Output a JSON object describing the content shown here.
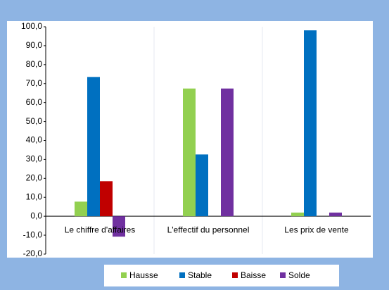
{
  "chart_data": {
    "type": "bar",
    "categories": [
      "Le chiffre d'affaires",
      "L'effectif du personnel",
      "Les prix de vente"
    ],
    "series": [
      {
        "name": "Hausse",
        "color": "#92d050",
        "values": [
          7.7,
          67.4,
          1.9
        ]
      },
      {
        "name": "Stable",
        "color": "#0070c0",
        "values": [
          73.5,
          32.6,
          98.1
        ]
      },
      {
        "name": "Baisse",
        "color": "#c00000",
        "values": [
          18.5,
          0,
          0
        ]
      },
      {
        "name": "Solde",
        "color": "#7030a0",
        "values": [
          -10.8,
          67.4,
          1.9
        ]
      }
    ],
    "ylim": [
      -20,
      100
    ],
    "yticks": [
      {
        "value": -20,
        "label": "-20,0"
      },
      {
        "value": -10,
        "label": "-10,0"
      },
      {
        "value": 0,
        "label": "0,0"
      },
      {
        "value": 10,
        "label": "10,0"
      },
      {
        "value": 20,
        "label": "20,0"
      },
      {
        "value": 30,
        "label": "30,0"
      },
      {
        "value": 40,
        "label": "40,0"
      },
      {
        "value": 50,
        "label": "50,0"
      },
      {
        "value": 60,
        "label": "60,0"
      },
      {
        "value": 70,
        "label": "70,0"
      },
      {
        "value": 80,
        "label": "80,0"
      },
      {
        "value": 90,
        "label": "90,0"
      },
      {
        "value": 100,
        "label": "100,0"
      }
    ],
    "legend": "bottom"
  }
}
